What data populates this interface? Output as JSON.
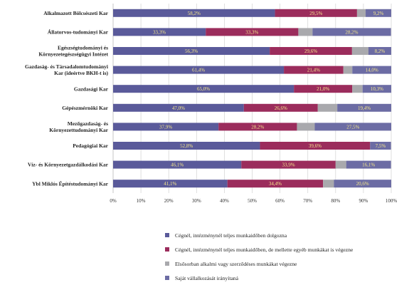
{
  "colors": {
    "series": [
      "#5a5a9a",
      "#9b2c5c",
      "#a9a9ad",
      "#6c6ca4"
    ],
    "grid": "#d7d7d7",
    "label": "#f3e58a"
  },
  "chart_data": {
    "type": "bar",
    "orientation": "horizontal",
    "stacked": "percent",
    "categories": [
      [
        "Alkalmazott Bölcsészeti Kar"
      ],
      [
        "Állatorvos-tudományi Kar"
      ],
      [
        "Egészségtudományi és",
        "Környezetegészségügyi Intézet"
      ],
      [
        "Gazdaság- és Társadalomtudományi",
        "Kar (ideértve BKH-t is)"
      ],
      [
        "Gazdasági Kar"
      ],
      [
        "Gépészmérnöki Kar"
      ],
      [
        "Mezőgazdaság- és",
        "Környezettudományi Kar"
      ],
      [
        "Pedagógiai Kar"
      ],
      [
        "Víz- és Környezetgazdálkodási Kar"
      ],
      [
        "Ybl Miklós Építéstudományi Kar"
      ]
    ],
    "series": [
      {
        "name": "Cégnél, intézménynél teljes munkaidőben dolgozna",
        "values": [
          58.2,
          33.3,
          56.3,
          61.4,
          65.0,
          47.0,
          37.9,
          52.8,
          46.1,
          41.1
        ]
      },
      {
        "name": "Cégnél, intézménynél teljes munkaidőben, de mellette egyéb munkákat is végezne",
        "values": [
          29.5,
          33.3,
          29.6,
          21.4,
          21.0,
          26.6,
          28.2,
          39.6,
          33.9,
          34.4
        ]
      },
      {
        "name": "Elsősorban alkalmi vagy szerződéses munkákat végezne",
        "values": [
          3.1,
          5.1,
          5.9,
          3.2,
          3.7,
          7.0,
          6.4,
          0.0,
          3.8,
          3.9
        ]
      },
      {
        "name": "Saját vállalkozását irányítaná",
        "values": [
          9.2,
          28.2,
          8.2,
          14.0,
          10.3,
          19.4,
          27.5,
          7.5,
          16.1,
          20.6
        ]
      }
    ],
    "labels": [
      [
        "58,2%",
        "29,5%",
        "",
        "9,2%"
      ],
      [
        "33,3%",
        "33,3%",
        "",
        "28,2%"
      ],
      [
        "56,3%",
        "29,6%",
        "",
        "8,2%"
      ],
      [
        "61,4%",
        "21,4%",
        "",
        "14,0%"
      ],
      [
        "65,0%",
        "21,0%",
        "",
        "10,3%"
      ],
      [
        "47,0%",
        "26,6%",
        "",
        "19,4%"
      ],
      [
        "37,9%",
        "28,2%",
        "",
        "27,5%"
      ],
      [
        "52,8%",
        "39,6%",
        "",
        "7,5%"
      ],
      [
        "46,1%",
        "33,9%",
        "",
        "16,1%"
      ],
      [
        "41,1%",
        "34,4%",
        "",
        "20,6%"
      ]
    ],
    "xticks": [
      "0%",
      "10%",
      "20%",
      "30%",
      "40%",
      "50%",
      "60%",
      "70%",
      "80%",
      "90%",
      "100%"
    ],
    "xlim": [
      0,
      100
    ],
    "grid": true,
    "legend_position": "bottom-right"
  }
}
